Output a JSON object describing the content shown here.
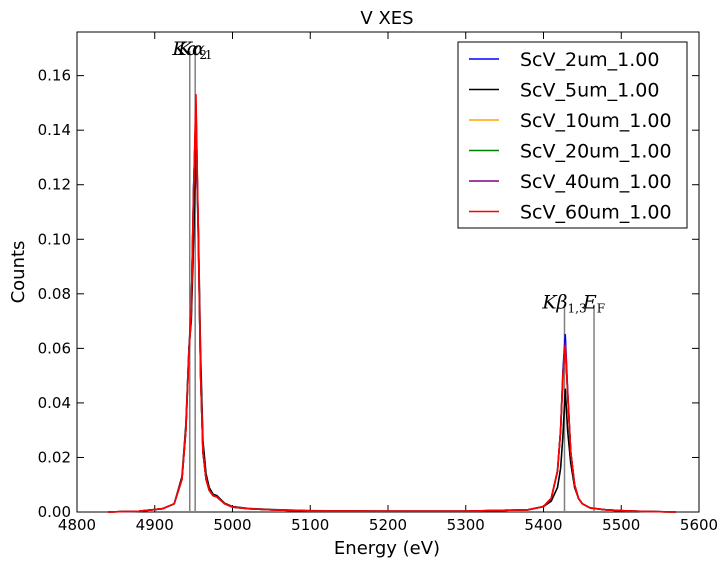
{
  "chart_data": {
    "type": "line",
    "title": "V XES",
    "xlabel": "Energy (eV)",
    "ylabel": "Counts",
    "xlim": [
      4800,
      5600
    ],
    "ylim": [
      0.0,
      0.176
    ],
    "xticks": [
      4800,
      4900,
      5000,
      5100,
      5200,
      5300,
      5400,
      5500,
      5600
    ],
    "xtick_labels": [
      "4800",
      "4900",
      "5000",
      "5100",
      "5200",
      "5300",
      "5400",
      "5500",
      "5600"
    ],
    "yticks": [
      0.0,
      0.02,
      0.04,
      0.06,
      0.08,
      0.1,
      0.12,
      0.14,
      0.16
    ],
    "ytick_labels": [
      "0.00",
      "0.02",
      "0.04",
      "0.06",
      "0.08",
      "0.10",
      "0.12",
      "0.14",
      "0.16"
    ],
    "grid": false,
    "legend_position": "top-right",
    "x": [
      4840,
      4880,
      4910,
      4925,
      4935,
      4940,
      4944,
      4947,
      4950,
      4953,
      4956,
      4959,
      4962,
      4966,
      4970,
      4975,
      4980,
      4990,
      5000,
      5020,
      5050,
      5100,
      5200,
      5300,
      5380,
      5400,
      5410,
      5418,
      5422,
      5425,
      5428,
      5431,
      5435,
      5440,
      5445,
      5450,
      5460,
      5480,
      5500,
      5530,
      5570
    ],
    "series": [
      {
        "name": "ScV_2um_1.00",
        "color": "#0000ff",
        "values": [
          0.0,
          0.0003,
          0.0012,
          0.003,
          0.012,
          0.03,
          0.06,
          0.075,
          0.12,
          0.142,
          0.1,
          0.05,
          0.022,
          0.012,
          0.008,
          0.006,
          0.0055,
          0.003,
          0.0018,
          0.0012,
          0.0008,
          0.0004,
          0.0003,
          0.0003,
          0.0008,
          0.002,
          0.005,
          0.015,
          0.03,
          0.052,
          0.065,
          0.045,
          0.022,
          0.01,
          0.005,
          0.003,
          0.0015,
          0.0008,
          0.0005,
          0.0002,
          0.0
        ]
      },
      {
        "name": "ScV_5um_1.00",
        "color": "#000000",
        "values": [
          0.0,
          0.0003,
          0.0012,
          0.003,
          0.013,
          0.032,
          0.06,
          0.07,
          0.1,
          0.135,
          0.105,
          0.058,
          0.026,
          0.014,
          0.009,
          0.0065,
          0.006,
          0.0032,
          0.002,
          0.0013,
          0.0009,
          0.0005,
          0.0003,
          0.0003,
          0.0008,
          0.002,
          0.004,
          0.009,
          0.016,
          0.028,
          0.045,
          0.03,
          0.018,
          0.009,
          0.005,
          0.003,
          0.0015,
          0.0008,
          0.0005,
          0.0002,
          0.0
        ]
      },
      {
        "name": "ScV_10um_1.00",
        "color": "#ffa500",
        "values": [
          0.0,
          0.0003,
          0.0012,
          0.003,
          0.012,
          0.03,
          0.058,
          0.075,
          0.118,
          0.148,
          0.102,
          0.05,
          0.022,
          0.012,
          0.008,
          0.006,
          0.0055,
          0.003,
          0.0018,
          0.0012,
          0.0008,
          0.0004,
          0.0003,
          0.0003,
          0.0008,
          0.002,
          0.005,
          0.015,
          0.03,
          0.05,
          0.061,
          0.044,
          0.022,
          0.01,
          0.005,
          0.003,
          0.0015,
          0.0008,
          0.0005,
          0.0002,
          0.0
        ]
      },
      {
        "name": "ScV_20um_1.00",
        "color": "#008000",
        "values": [
          0.0,
          0.0003,
          0.0012,
          0.003,
          0.012,
          0.03,
          0.058,
          0.075,
          0.118,
          0.148,
          0.102,
          0.05,
          0.022,
          0.012,
          0.008,
          0.006,
          0.0055,
          0.003,
          0.0018,
          0.0012,
          0.0008,
          0.0004,
          0.0003,
          0.0003,
          0.0008,
          0.002,
          0.005,
          0.015,
          0.03,
          0.05,
          0.061,
          0.044,
          0.022,
          0.01,
          0.005,
          0.003,
          0.0015,
          0.0008,
          0.0005,
          0.0002,
          0.0
        ]
      },
      {
        "name": "ScV_40um_1.00",
        "color": "#800080",
        "values": [
          0.0,
          0.0003,
          0.0012,
          0.003,
          0.012,
          0.03,
          0.058,
          0.075,
          0.118,
          0.15,
          0.103,
          0.05,
          0.022,
          0.012,
          0.008,
          0.006,
          0.0055,
          0.003,
          0.0018,
          0.0012,
          0.0008,
          0.0004,
          0.0003,
          0.0003,
          0.0008,
          0.002,
          0.005,
          0.015,
          0.03,
          0.05,
          0.062,
          0.044,
          0.022,
          0.01,
          0.005,
          0.003,
          0.0015,
          0.0008,
          0.0005,
          0.0002,
          0.0
        ]
      },
      {
        "name": "ScV_60um_1.00",
        "color": "#ff0000",
        "values": [
          0.0,
          0.0003,
          0.0012,
          0.003,
          0.012,
          0.03,
          0.058,
          0.074,
          0.118,
          0.153,
          0.103,
          0.05,
          0.022,
          0.012,
          0.008,
          0.006,
          0.0055,
          0.003,
          0.0018,
          0.0012,
          0.0008,
          0.0004,
          0.0003,
          0.0003,
          0.0008,
          0.002,
          0.005,
          0.015,
          0.03,
          0.05,
          0.061,
          0.044,
          0.022,
          0.01,
          0.005,
          0.003,
          0.0015,
          0.0008,
          0.0005,
          0.0002,
          0.0
        ]
      }
    ],
    "reference_lines": [
      {
        "x": 4945,
        "y_top": 0.169,
        "color": "#808080"
      },
      {
        "x": 4952,
        "y_top": 0.169,
        "color": "#808080"
      },
      {
        "x": 5427,
        "y_top": 0.076,
        "color": "#808080"
      },
      {
        "x": 5465,
        "y_top": 0.076,
        "color": "#808080"
      }
    ],
    "annotations": [
      {
        "x": 4945,
        "y": 0.169,
        "base": "K",
        "greek": "α",
        "sub": "2"
      },
      {
        "x": 4952,
        "y": 0.169,
        "base": "K",
        "greek": "α",
        "sub": "1"
      },
      {
        "x": 5427,
        "y": 0.076,
        "base": "K",
        "greek": "β",
        "sub": "1,3"
      },
      {
        "x": 5465,
        "y": 0.076,
        "base": "E",
        "greek": "",
        "sub": "F"
      }
    ]
  }
}
